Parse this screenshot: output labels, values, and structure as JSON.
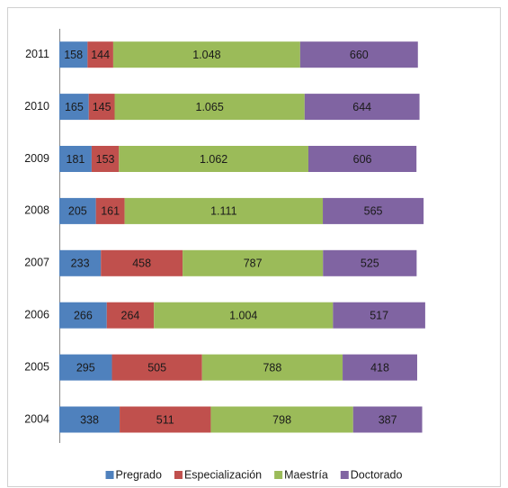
{
  "chart_data": {
    "type": "stacked-barh",
    "categories": [
      "2004",
      "2005",
      "2006",
      "2007",
      "2008",
      "2009",
      "2010",
      "2011"
    ],
    "series": [
      {
        "name": "Pregrado",
        "color": "#4f81bd",
        "values": [
          338,
          295,
          266,
          233,
          205,
          181,
          165,
          158
        ]
      },
      {
        "name": "Especialización",
        "color": "#c0504d",
        "values": [
          511,
          505,
          264,
          458,
          161,
          153,
          145,
          144
        ]
      },
      {
        "name": "Maestría",
        "color": "#9bbb59",
        "values": [
          798,
          788,
          1004,
          787,
          1111,
          1062,
          1065,
          1048
        ],
        "value_labels": [
          "798",
          "788",
          "1.004",
          "787",
          "1.111",
          "1.062",
          "1.065",
          "1.048"
        ]
      },
      {
        "name": "Doctorado",
        "color": "#8064a2",
        "values": [
          387,
          418,
          517,
          525,
          565,
          606,
          644,
          660
        ]
      }
    ],
    "xlim": [
      0,
      2500
    ],
    "legend": "bottom"
  }
}
